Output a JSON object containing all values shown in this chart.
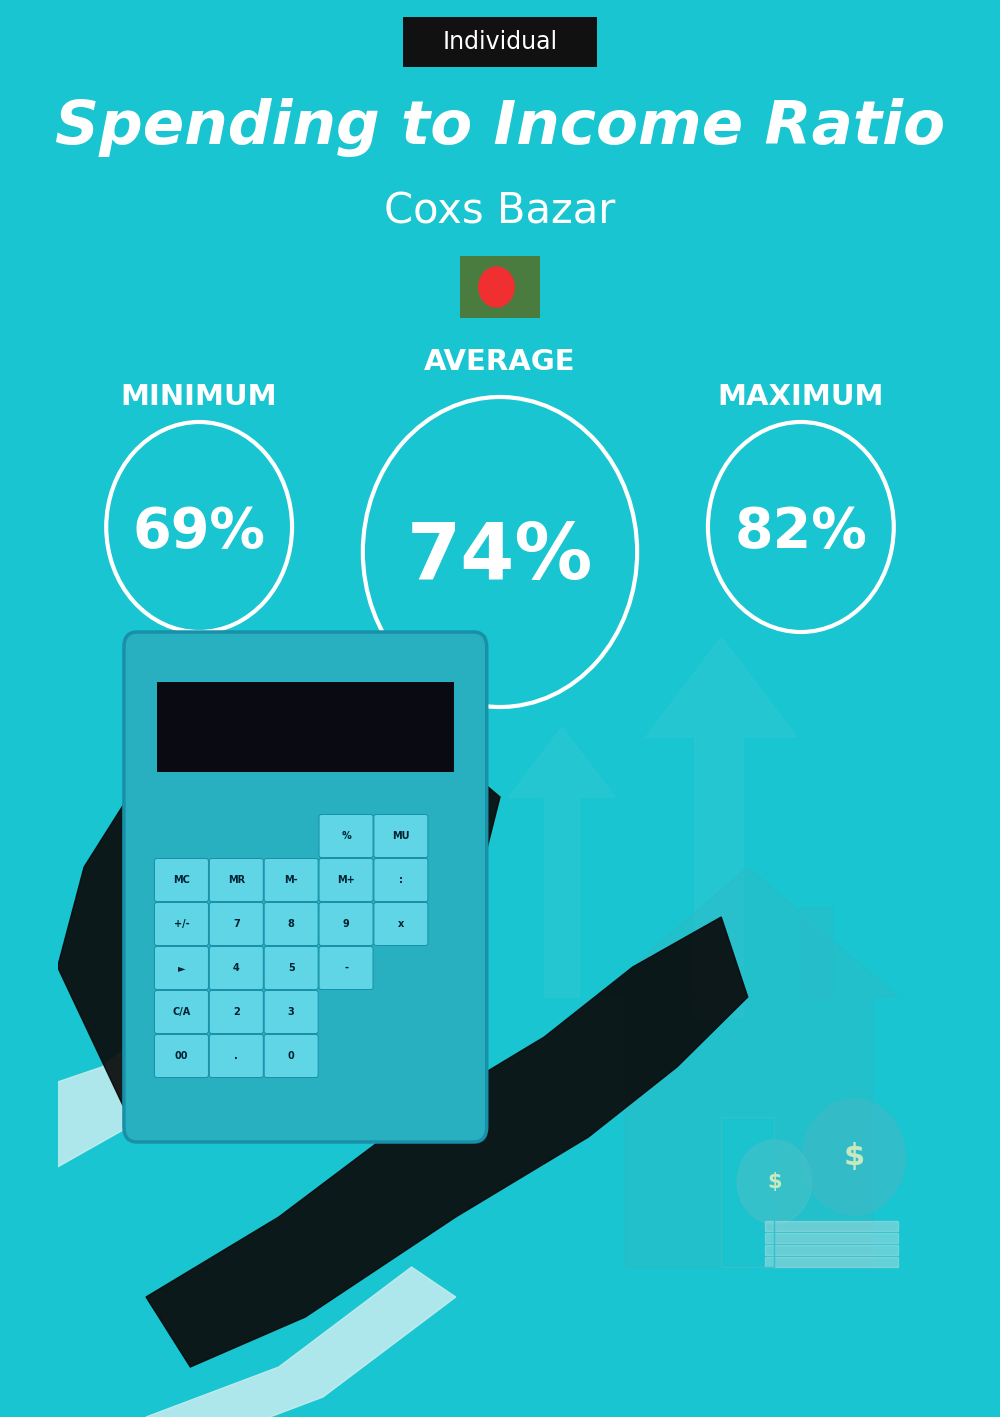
{
  "bg_color": "#18c5d0",
  "title": "Spending to Income Ratio",
  "subtitle": "Coxs Bazar",
  "label_tag": "Individual",
  "label_tag_bg": "#111111",
  "label_tag_color": "#ffffff",
  "min_label": "MINIMUM",
  "avg_label": "AVERAGE",
  "max_label": "MAXIMUM",
  "min_value": "69%",
  "avg_value": "74%",
  "max_value": "82%",
  "circle_color": "#ffffff",
  "circle_lw": 3.0,
  "text_color": "#ffffff",
  "title_fontsize": 44,
  "subtitle_fontsize": 30,
  "label_fontsize": 21,
  "value_fontsize_small": 40,
  "value_fontsize_large": 56,
  "flag_green": "#4a7c3f",
  "flag_red": "#f03030",
  "fig_width": 10.0,
  "fig_height": 14.17
}
